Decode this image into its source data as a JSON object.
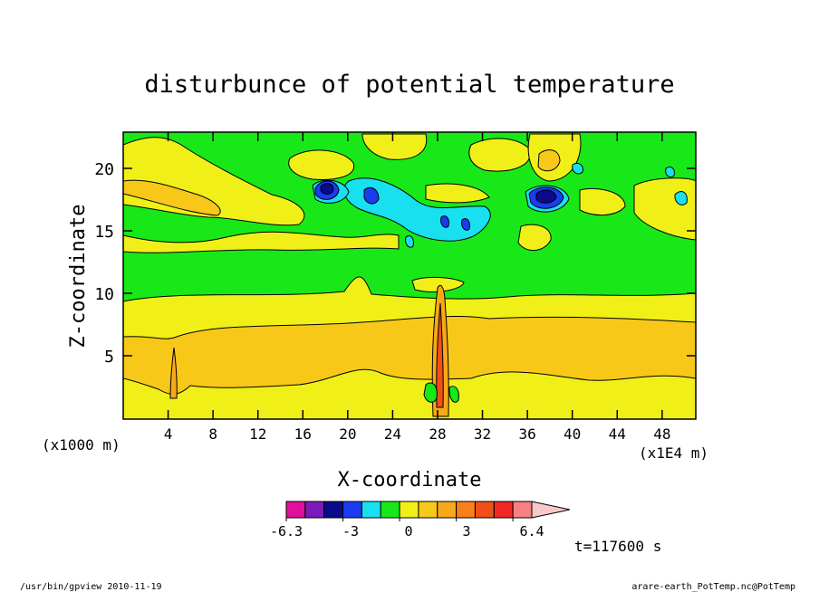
{
  "chart_data": {
    "type": "heatmap",
    "title": "disturbunce of potential temperature",
    "xlabel": "X-coordinate",
    "ylabel": "Z-coordinate",
    "x_unit_left": "(x1000 m)",
    "x_unit_right": "(x1E4 m)",
    "x_ticks": [
      4,
      8,
      12,
      16,
      20,
      24,
      28,
      32,
      36,
      40,
      44,
      48
    ],
    "x_tick_labels": [
      "4",
      "8",
      "12",
      "16",
      "20",
      "24",
      "28",
      "32",
      "36",
      "40",
      "44",
      "48"
    ],
    "y_ticks": [
      5,
      10,
      15,
      20
    ],
    "y_tick_labels": [
      "5",
      "10",
      "15",
      "20"
    ],
    "xlim": [
      0,
      51
    ],
    "ylim": [
      0,
      23
    ],
    "time_label": "t=117600 s",
    "colorbar": {
      "levels_labeled": [
        "-6.3",
        "-3",
        "0",
        "3",
        "6.4"
      ],
      "colors": [
        "#e0109a",
        "#7a1ab8",
        "#0a0a8a",
        "#1a3cf0",
        "#18e0f0",
        "#18e818",
        "#f0f018",
        "#f8c818",
        "#f8a818",
        "#f88018",
        "#f05018",
        "#f02828",
        "#f88080",
        "#f8c8c8"
      ]
    },
    "field_bands": [
      {
        "z": [
          0,
          1
        ],
        "level": "positive",
        "color": "#f0f018"
      },
      {
        "z": [
          1,
          7
        ],
        "level": "positive",
        "color": "#f8c818"
      },
      {
        "z": [
          7,
          10
        ],
        "level": "positive",
        "color": "#f0f018"
      },
      {
        "z": [
          10,
          23
        ],
        "level": "zero",
        "color": "#18e818"
      }
    ]
  },
  "footer": {
    "left": "/usr/bin/gpview  2010-11-19",
    "right": "arare-earth_PotTemp.nc@PotTemp"
  }
}
